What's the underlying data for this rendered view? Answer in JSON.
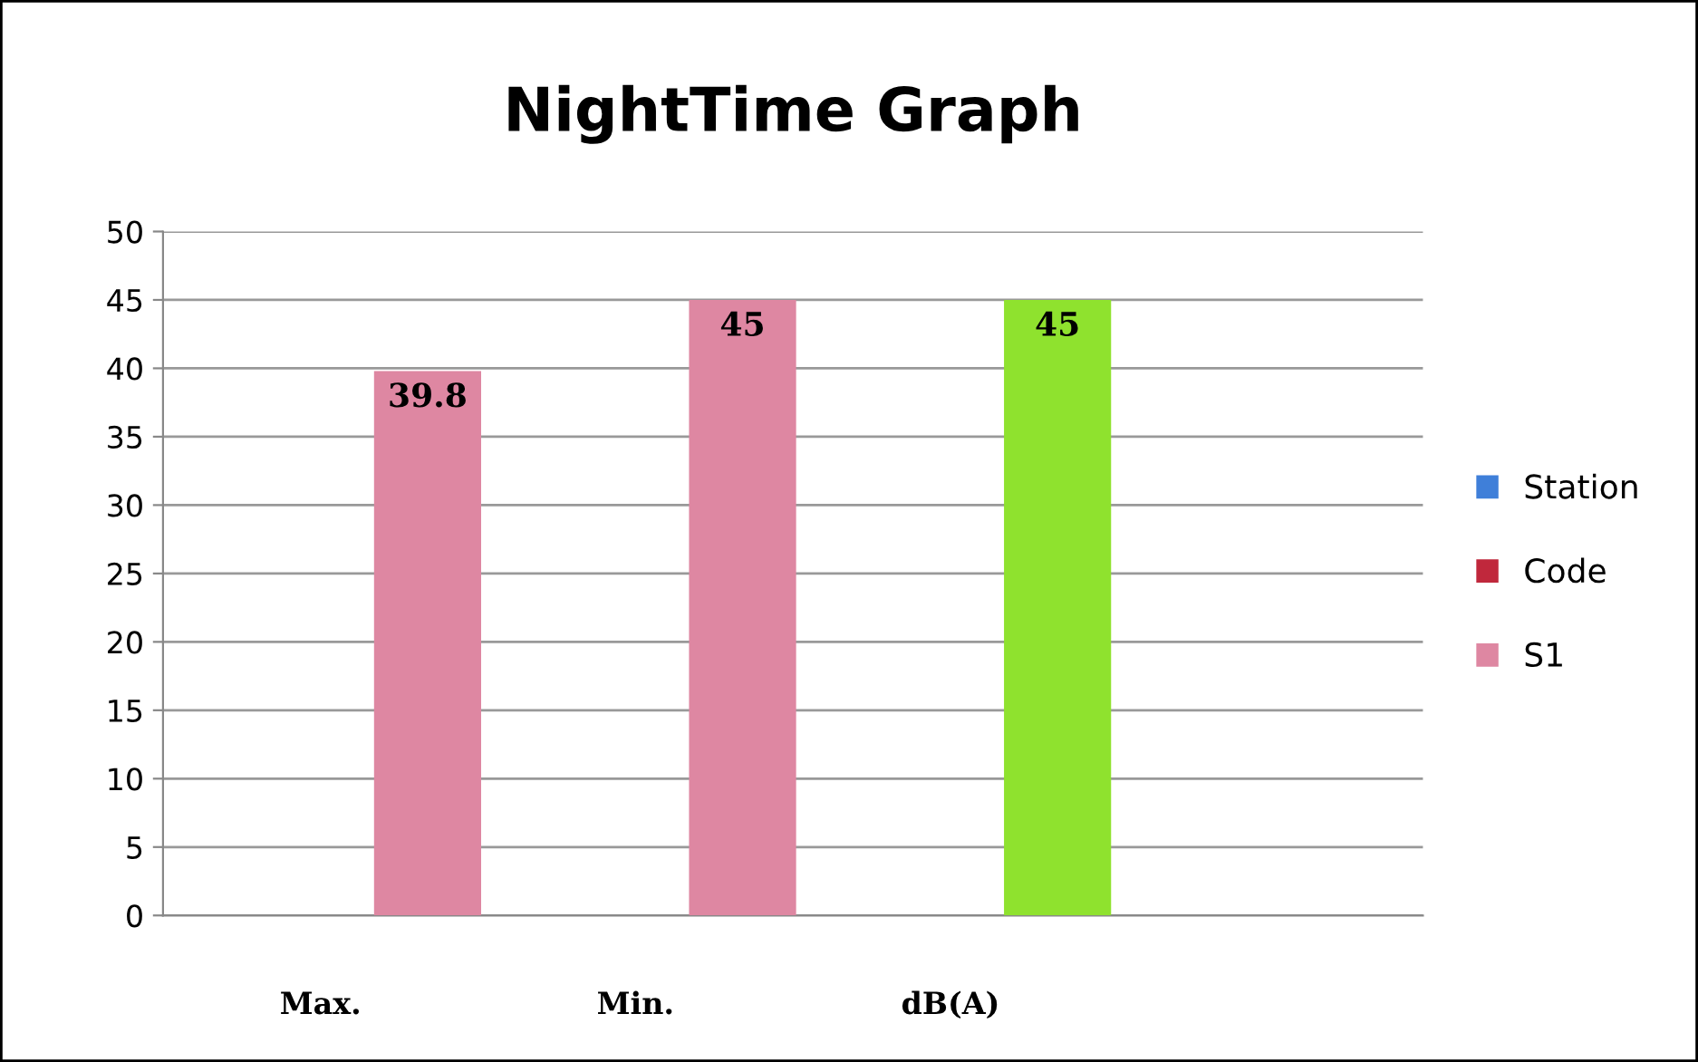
{
  "chart_data": {
    "type": "bar",
    "title": "NightTime Graph",
    "categories": [
      "Max.",
      "Min.",
      "dB(A)",
      null
    ],
    "series": [
      {
        "name": "Station",
        "color": "#3f7fd9",
        "values": [
          null,
          null,
          null,
          null
        ]
      },
      {
        "name": "Code",
        "color": "#c0283c",
        "values": [
          null,
          null,
          null,
          null
        ]
      },
      {
        "name": "S1",
        "color": "#de87a2",
        "colors": [
          "#de87a2",
          "#de87a2",
          "#8fe22e",
          "#de87a2"
        ],
        "values": [
          39.8,
          45,
          45,
          null
        ]
      }
    ],
    "ylim": [
      0,
      50
    ],
    "yticks": [
      0,
      5,
      10,
      15,
      20,
      25,
      30,
      35,
      40,
      45,
      50
    ],
    "grid": "y",
    "legend": "right",
    "data_labels": true
  }
}
